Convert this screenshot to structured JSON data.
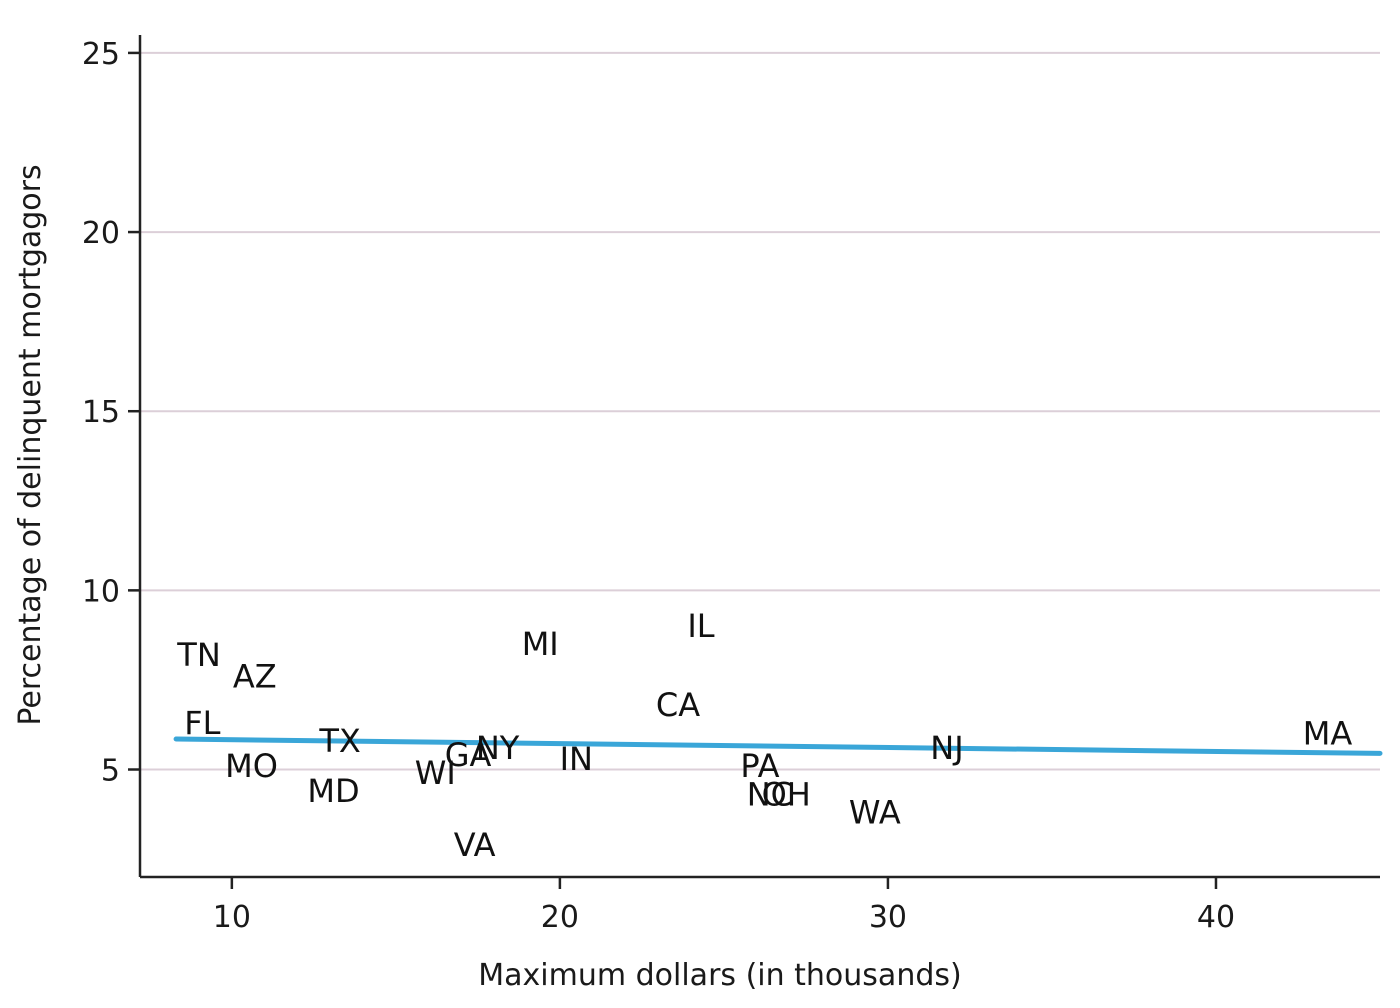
{
  "chart_data": {
    "type": "scatter",
    "xlabel": "Maximum dollars (in thousands)",
    "ylabel": "Percentage of delinquent mortgagors",
    "xlim": [
      7.2,
      45
    ],
    "ylim": [
      2,
      25.5
    ],
    "xticks": [
      10,
      20,
      30,
      40
    ],
    "yticks": [
      5,
      10,
      15,
      20,
      25
    ],
    "grid": "horizontal",
    "colors": {
      "fit_line": "#3aa6d8",
      "grid": "#dccfd8",
      "text": "#111111"
    },
    "points": [
      {
        "label": "TN",
        "x": 9.0,
        "y": 8.2
      },
      {
        "label": "AZ",
        "x": 10.7,
        "y": 7.6
      },
      {
        "label": "FL",
        "x": 9.1,
        "y": 6.3
      },
      {
        "label": "MO",
        "x": 10.6,
        "y": 5.1
      },
      {
        "label": "TX",
        "x": 13.3,
        "y": 5.8
      },
      {
        "label": "MD",
        "x": 13.1,
        "y": 4.4
      },
      {
        "label": "GA",
        "x": 17.2,
        "y": 5.4
      },
      {
        "label": "NY",
        "x": 18.1,
        "y": 5.6
      },
      {
        "label": "WI",
        "x": 16.2,
        "y": 4.9
      },
      {
        "label": "VA",
        "x": 17.4,
        "y": 2.9
      },
      {
        "label": "MI",
        "x": 19.4,
        "y": 8.5
      },
      {
        "label": "IN",
        "x": 20.5,
        "y": 5.3
      },
      {
        "label": "IL",
        "x": 24.3,
        "y": 9.0
      },
      {
        "label": "CA",
        "x": 23.6,
        "y": 6.8
      },
      {
        "label": "PA",
        "x": 26.1,
        "y": 5.1
      },
      {
        "label": "NC",
        "x": 26.4,
        "y": 4.3
      },
      {
        "label": "OH",
        "x": 26.9,
        "y": 4.3
      },
      {
        "label": "WA",
        "x": 29.6,
        "y": 3.8
      },
      {
        "label": "NJ",
        "x": 31.8,
        "y": 5.6
      },
      {
        "label": "MA",
        "x": 43.4,
        "y": 6.0
      }
    ],
    "fit_line": {
      "x": [
        8.3,
        45
      ],
      "y": [
        5.85,
        5.45
      ]
    }
  }
}
